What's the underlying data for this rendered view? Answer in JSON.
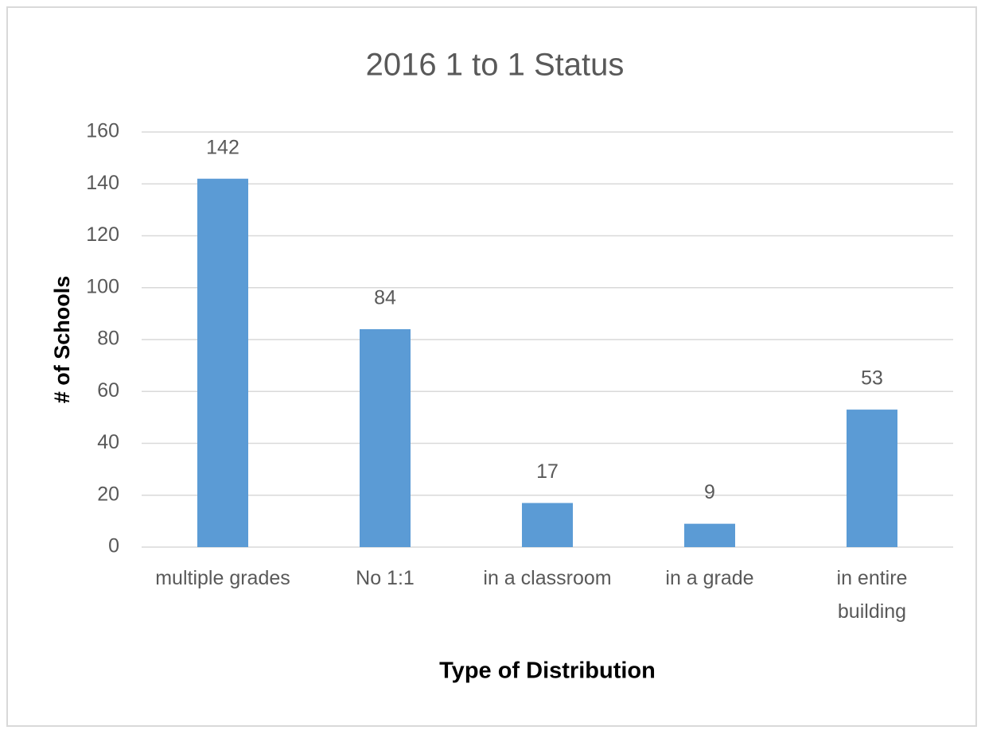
{
  "chart_data": {
    "type": "bar",
    "title": "2016 1 to 1 Status",
    "x_label": "Type of Distribution",
    "y_label": "# of Schools",
    "categories": [
      "multiple grades",
      "No 1:1",
      "in a classroom",
      "in a grade",
      "in entire building"
    ],
    "values": [
      142,
      84,
      17,
      9,
      53
    ],
    "color": "#5b9bd5",
    "ylim": [
      0,
      160
    ],
    "yticks": [
      0,
      20,
      40,
      60,
      80,
      100,
      120,
      140,
      160
    ],
    "grid": true,
    "data_labels": true
  }
}
